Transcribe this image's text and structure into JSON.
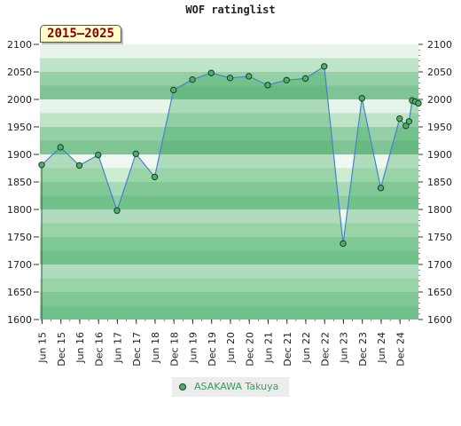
{
  "chart_data": {
    "type": "line",
    "title": "WOF ratinglist",
    "period_label": "2015–2025",
    "x_start": "2015-06",
    "x_end": "2025-06",
    "ylim": [
      1600,
      2100
    ],
    "y_ticks": [
      1600,
      1650,
      1700,
      1750,
      1800,
      1850,
      1900,
      1950,
      2000,
      2050,
      2100
    ],
    "x_ticks": [
      "Jun 15",
      "Dec 15",
      "Jun 16",
      "Dec 16",
      "Jun 17",
      "Dec 17",
      "Jun 18",
      "Dec 18",
      "Jun 19",
      "Dec 19",
      "Jun 20",
      "Dec 20",
      "Jun 21",
      "Dec 21",
      "Jun 22",
      "Dec 22",
      "Jun 23",
      "Dec 23",
      "Jun 24",
      "Dec 24"
    ],
    "grid": true,
    "legend_position": "bottom-center",
    "series": [
      {
        "name": "ASAKAWA Takuya",
        "color": "#4caf6a",
        "line_color": "#4a7fd0",
        "points": [
          {
            "x": "2015-06",
            "y": 1881
          },
          {
            "x": "2015-12",
            "y": 1913
          },
          {
            "x": "2016-06",
            "y": 1880
          },
          {
            "x": "2016-12",
            "y": 1899
          },
          {
            "x": "2017-06",
            "y": 1798
          },
          {
            "x": "2017-12",
            "y": 1901
          },
          {
            "x": "2018-06",
            "y": 1859
          },
          {
            "x": "2018-12",
            "y": 2017
          },
          {
            "x": "2019-06",
            "y": 2036
          },
          {
            "x": "2019-12",
            "y": 2048
          },
          {
            "x": "2020-06",
            "y": 2039
          },
          {
            "x": "2020-12",
            "y": 2042
          },
          {
            "x": "2021-06",
            "y": 2026
          },
          {
            "x": "2021-12",
            "y": 2035
          },
          {
            "x": "2022-06",
            "y": 2038
          },
          {
            "x": "2022-12",
            "y": 2060
          },
          {
            "x": "2023-06",
            "y": 1738
          },
          {
            "x": "2023-12",
            "y": 2002
          },
          {
            "x": "2024-06",
            "y": 1839
          },
          {
            "x": "2024-12",
            "y": 1965
          },
          {
            "x": "2025-02",
            "y": 1952
          },
          {
            "x": "2025-03",
            "y": 1960
          },
          {
            "x": "2025-04",
            "y": 1998
          },
          {
            "x": "2025-05",
            "y": 1996
          },
          {
            "x": "2025-06",
            "y": 1993
          }
        ]
      }
    ]
  }
}
